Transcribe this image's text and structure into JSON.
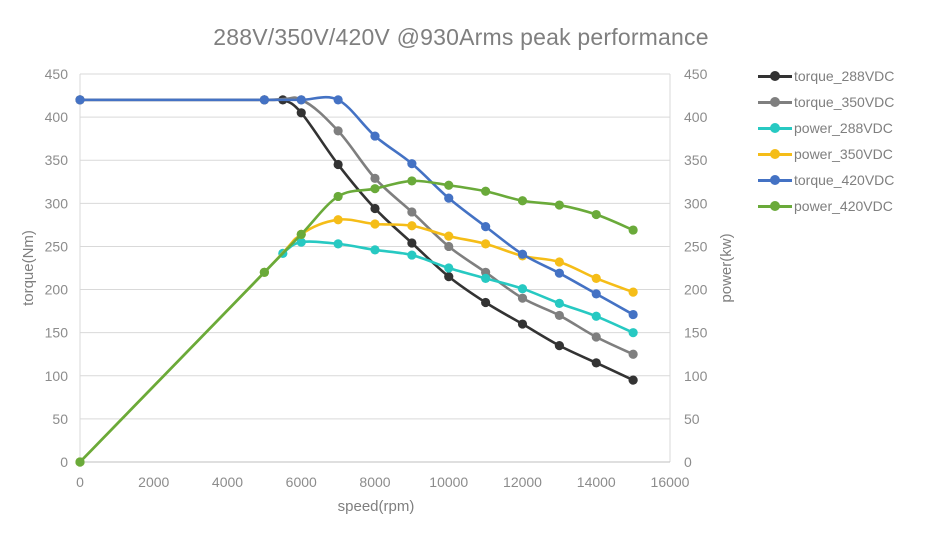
{
  "chart_data": {
    "type": "line",
    "title": "288V/350V/420V @930Arms peak performance",
    "xlabel": "speed(rpm)",
    "ylabel": "torque(Nm)",
    "y2label": "power(kw)",
    "xlim": [
      0,
      16000
    ],
    "ylim": [
      0,
      450
    ],
    "y2lim": [
      0,
      450
    ],
    "x_ticks": [
      "0",
      "2000",
      "4000",
      "6000",
      "8000",
      "10000",
      "12000",
      "14000",
      "16000"
    ],
    "y_ticks": [
      "0",
      "50",
      "100",
      "150",
      "200",
      "250",
      "300",
      "350",
      "400",
      "450"
    ],
    "y2_ticks": [
      "0",
      "50",
      "100",
      "150",
      "200",
      "250",
      "300",
      "350",
      "400",
      "450"
    ],
    "grid": "horizontal",
    "legend_position": "right",
    "series": [
      {
        "name": "torque_288VDC",
        "color": "#333333",
        "axis": "left",
        "x": [
          0,
          5000,
          5500,
          6000,
          7000,
          8000,
          9000,
          10000,
          11000,
          12000,
          13000,
          14000,
          15000
        ],
        "y": [
          420,
          420,
          420,
          405,
          345,
          294,
          254,
          215,
          185,
          160,
          135,
          115,
          95
        ]
      },
      {
        "name": "torque_350VDC",
        "color": "#7f7f7f",
        "axis": "left",
        "x": [
          0,
          5000,
          6000,
          7000,
          8000,
          9000,
          10000,
          11000,
          12000,
          13000,
          14000,
          15000
        ],
        "y": [
          420,
          420,
          420,
          384,
          329,
          290,
          250,
          220,
          190,
          170,
          145,
          125
        ]
      },
      {
        "name": "power_288VDC",
        "color": "#27c9c2",
        "axis": "right",
        "x": [
          0,
          5000,
          5500,
          6000,
          7000,
          8000,
          9000,
          10000,
          11000,
          12000,
          13000,
          14000,
          15000
        ],
        "y": [
          0,
          220,
          242,
          255,
          253,
          246,
          240,
          225,
          213,
          201,
          184,
          169,
          150
        ]
      },
      {
        "name": "power_350VDC",
        "color": "#f5bd18",
        "axis": "right",
        "x": [
          0,
          5000,
          6000,
          7000,
          8000,
          9000,
          10000,
          11000,
          12000,
          13000,
          14000,
          15000
        ],
        "y": [
          0,
          220,
          264,
          281,
          276,
          274,
          262,
          253,
          239,
          232,
          213,
          197
        ]
      },
      {
        "name": "torque_420VDC",
        "color": "#4472c4",
        "axis": "left",
        "x": [
          0,
          5000,
          6000,
          7000,
          8000,
          9000,
          10000,
          11000,
          12000,
          13000,
          14000,
          15000
        ],
        "y": [
          420,
          420,
          420,
          420,
          378,
          346,
          306,
          273,
          241,
          219,
          195,
          171
        ]
      },
      {
        "name": "power_420VDC",
        "color": "#6aaa3a",
        "axis": "right",
        "x": [
          0,
          5000,
          6000,
          7000,
          8000,
          9000,
          10000,
          11000,
          12000,
          13000,
          14000,
          15000
        ],
        "y": [
          0,
          220,
          264,
          308,
          317,
          326,
          321,
          314,
          303,
          298,
          287,
          269
        ]
      }
    ]
  }
}
